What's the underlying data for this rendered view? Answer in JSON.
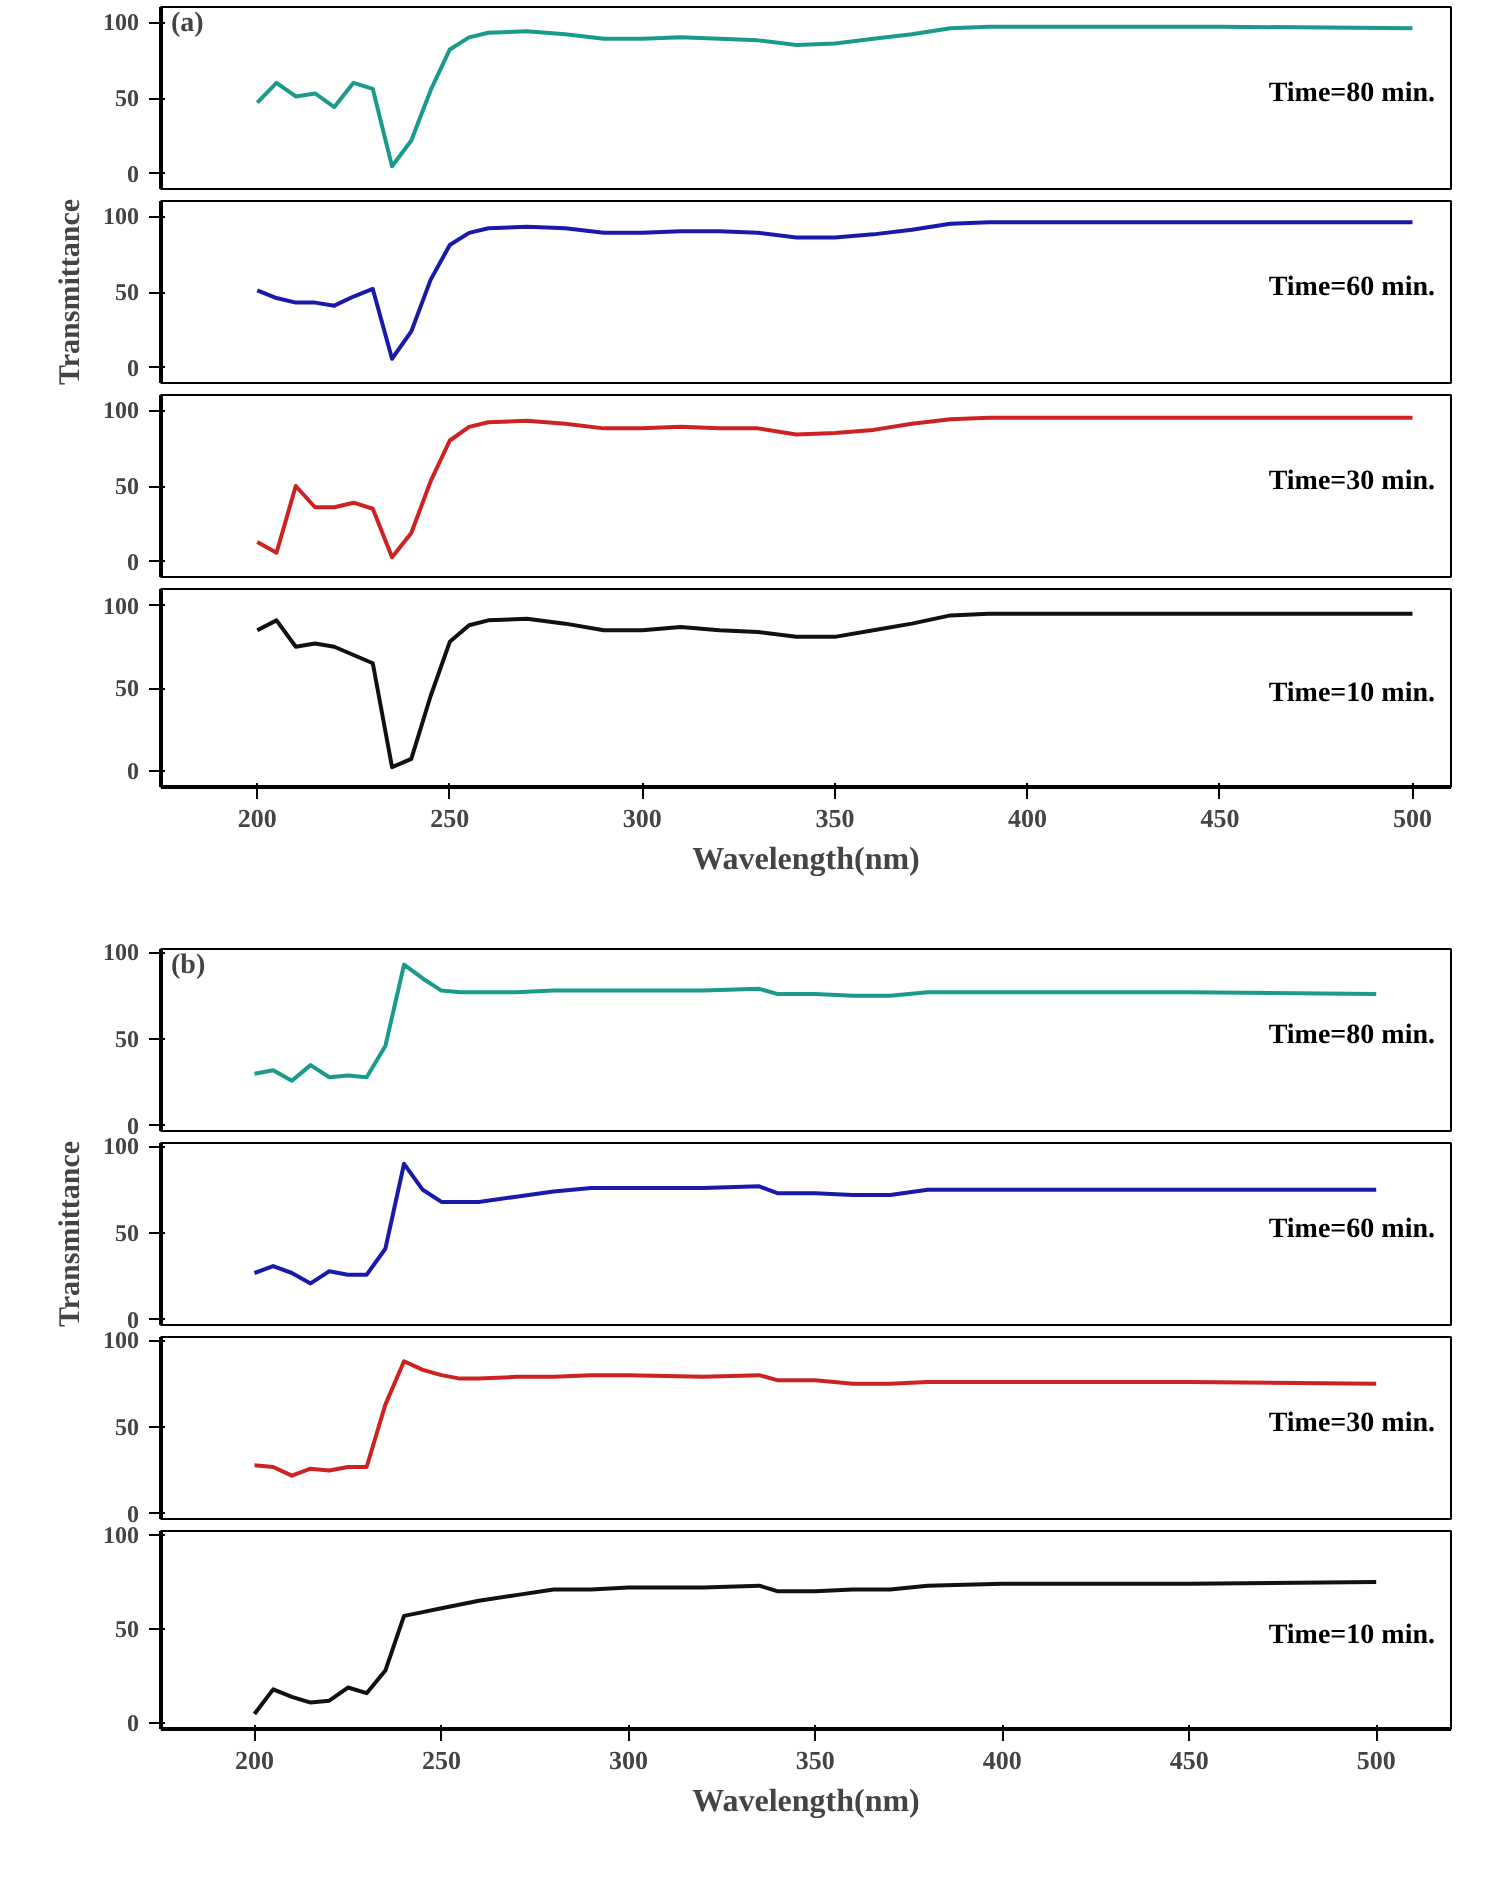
{
  "chart_data": [
    {
      "type": "line",
      "annotations": [
        "(a)"
      ],
      "x": [
        200,
        205,
        210,
        215,
        220,
        225,
        230,
        235,
        240,
        245,
        250,
        255,
        260,
        270,
        280,
        290,
        300,
        310,
        320,
        330,
        340,
        350,
        360,
        370,
        380,
        390,
        400,
        450,
        500
      ],
      "xlim": [
        175,
        510
      ],
      "ylim": [
        -10,
        110
      ],
      "yticks": [
        0,
        50,
        100
      ],
      "tick_labels": "y",
      "grid": false,
      "series": [
        {
          "name": "Time=80 min.",
          "color": "#1a9a8a",
          "values": [
            47,
            60,
            51,
            53,
            44,
            60,
            56,
            5,
            22,
            55,
            82,
            90,
            93,
            94,
            92,
            89,
            89,
            90,
            89,
            88,
            85,
            86,
            89,
            92,
            96,
            97,
            97,
            97,
            96
          ]
        }
      ]
    },
    {
      "type": "line",
      "ylabel": "Transmittance",
      "x": [
        200,
        205,
        210,
        215,
        220,
        225,
        230,
        235,
        240,
        245,
        250,
        255,
        260,
        270,
        280,
        290,
        300,
        310,
        320,
        330,
        340,
        350,
        360,
        370,
        380,
        390,
        400,
        450,
        500
      ],
      "xlim": [
        175,
        510
      ],
      "ylim": [
        -10,
        110
      ],
      "yticks": [
        0,
        50,
        100
      ],
      "tick_labels": "y",
      "grid": false,
      "series": [
        {
          "name": "Time=60 min.",
          "color": "#1a1aaa",
          "values": [
            51,
            46,
            43,
            43,
            41,
            47,
            52,
            6,
            24,
            58,
            81,
            89,
            92,
            93,
            92,
            89,
            89,
            90,
            90,
            89,
            86,
            86,
            88,
            91,
            95,
            96,
            96,
            96,
            96
          ]
        }
      ]
    },
    {
      "type": "line",
      "x": [
        200,
        205,
        210,
        215,
        220,
        225,
        230,
        235,
        240,
        245,
        250,
        255,
        260,
        270,
        280,
        290,
        300,
        310,
        320,
        330,
        340,
        350,
        360,
        370,
        380,
        390,
        400,
        450,
        500
      ],
      "xlim": [
        175,
        510
      ],
      "ylim": [
        -10,
        110
      ],
      "yticks": [
        0,
        50,
        100
      ],
      "tick_labels": "y",
      "grid": false,
      "series": [
        {
          "name": "Time=30 min.",
          "color": "#cc2222",
          "values": [
            13,
            6,
            50,
            36,
            36,
            39,
            35,
            3,
            19,
            53,
            80,
            89,
            92,
            93,
            91,
            88,
            88,
            89,
            88,
            88,
            84,
            85,
            87,
            91,
            94,
            95,
            95,
            95,
            95
          ]
        }
      ]
    },
    {
      "type": "line",
      "xlabel": "Wavelength(nm)",
      "x": [
        200,
        205,
        210,
        215,
        220,
        225,
        230,
        235,
        240,
        245,
        250,
        255,
        260,
        270,
        280,
        290,
        300,
        310,
        320,
        330,
        340,
        350,
        360,
        370,
        380,
        390,
        400,
        450,
        500
      ],
      "xlim": [
        175,
        510
      ],
      "xticks": [
        200,
        250,
        300,
        350,
        400,
        450,
        500
      ],
      "ylim": [
        -10,
        110
      ],
      "yticks": [
        0,
        50,
        100
      ],
      "grid": false,
      "series": [
        {
          "name": "Time=10 min.",
          "color": "#111111",
          "values": [
            85,
            91,
            75,
            77,
            75,
            70,
            65,
            2,
            7,
            45,
            78,
            88,
            91,
            92,
            89,
            85,
            85,
            87,
            85,
            84,
            81,
            81,
            85,
            89,
            94,
            95,
            95,
            95,
            95
          ]
        }
      ]
    },
    {
      "type": "line",
      "annotations": [
        "(b)"
      ],
      "x": [
        200,
        205,
        210,
        215,
        220,
        225,
        230,
        235,
        240,
        245,
        250,
        255,
        260,
        270,
        280,
        290,
        300,
        320,
        335,
        340,
        350,
        360,
        370,
        380,
        400,
        450,
        500
      ],
      "xlim": [
        175,
        520
      ],
      "ylim": [
        -3,
        102
      ],
      "yticks": [
        0,
        50,
        100
      ],
      "tick_labels": "y",
      "grid": false,
      "series": [
        {
          "name": "Time=80 min.",
          "color": "#1a9a8a",
          "values": [
            30,
            32,
            26,
            35,
            28,
            29,
            28,
            46,
            93,
            85,
            78,
            77,
            77,
            77,
            78,
            78,
            78,
            78,
            79,
            76,
            76,
            75,
            75,
            77,
            77,
            77,
            76
          ]
        }
      ]
    },
    {
      "type": "line",
      "ylabel": "Transmittance",
      "x": [
        200,
        205,
        210,
        215,
        220,
        225,
        230,
        235,
        240,
        245,
        250,
        255,
        260,
        270,
        280,
        290,
        300,
        320,
        335,
        340,
        350,
        360,
        370,
        380,
        400,
        450,
        500
      ],
      "xlim": [
        175,
        520
      ],
      "ylim": [
        -3,
        102
      ],
      "yticks": [
        0,
        50,
        100
      ],
      "tick_labels": "y",
      "grid": false,
      "series": [
        {
          "name": "Time=60 min.",
          "color": "#1a1aaa",
          "values": [
            27,
            31,
            27,
            21,
            28,
            26,
            26,
            41,
            90,
            75,
            68,
            68,
            68,
            71,
            74,
            76,
            76,
            76,
            77,
            73,
            73,
            72,
            72,
            75,
            75,
            75,
            75
          ]
        }
      ]
    },
    {
      "type": "line",
      "x": [
        200,
        205,
        210,
        215,
        220,
        225,
        230,
        235,
        240,
        245,
        250,
        255,
        260,
        270,
        280,
        290,
        300,
        320,
        335,
        340,
        350,
        360,
        370,
        380,
        400,
        450,
        500
      ],
      "xlim": [
        175,
        520
      ],
      "ylim": [
        -3,
        102
      ],
      "yticks": [
        0,
        50,
        100
      ],
      "tick_labels": "y",
      "grid": false,
      "series": [
        {
          "name": "Time=30 min.",
          "color": "#cc2222",
          "values": [
            28,
            27,
            22,
            26,
            25,
            27,
            27,
            63,
            88,
            83,
            80,
            78,
            78,
            79,
            79,
            80,
            80,
            79,
            80,
            77,
            77,
            75,
            75,
            76,
            76,
            76,
            75
          ]
        }
      ]
    },
    {
      "type": "line",
      "xlabel": "Wavelength(nm)",
      "x": [
        200,
        205,
        210,
        215,
        220,
        225,
        230,
        235,
        240,
        245,
        250,
        255,
        260,
        270,
        280,
        290,
        300,
        320,
        335,
        340,
        350,
        360,
        370,
        380,
        400,
        450,
        500
      ],
      "xlim": [
        175,
        520
      ],
      "xticks": [
        200,
        250,
        300,
        350,
        400,
        450,
        500
      ],
      "ylim": [
        -3,
        102
      ],
      "yticks": [
        0,
        50,
        100
      ],
      "grid": false,
      "series": [
        {
          "name": "Time=10 min.",
          "color": "#111111",
          "values": [
            5,
            18,
            14,
            11,
            12,
            19,
            16,
            28,
            57,
            59,
            61,
            63,
            65,
            68,
            71,
            71,
            72,
            72,
            73,
            70,
            70,
            71,
            71,
            73,
            74,
            74,
            75
          ]
        }
      ]
    }
  ]
}
